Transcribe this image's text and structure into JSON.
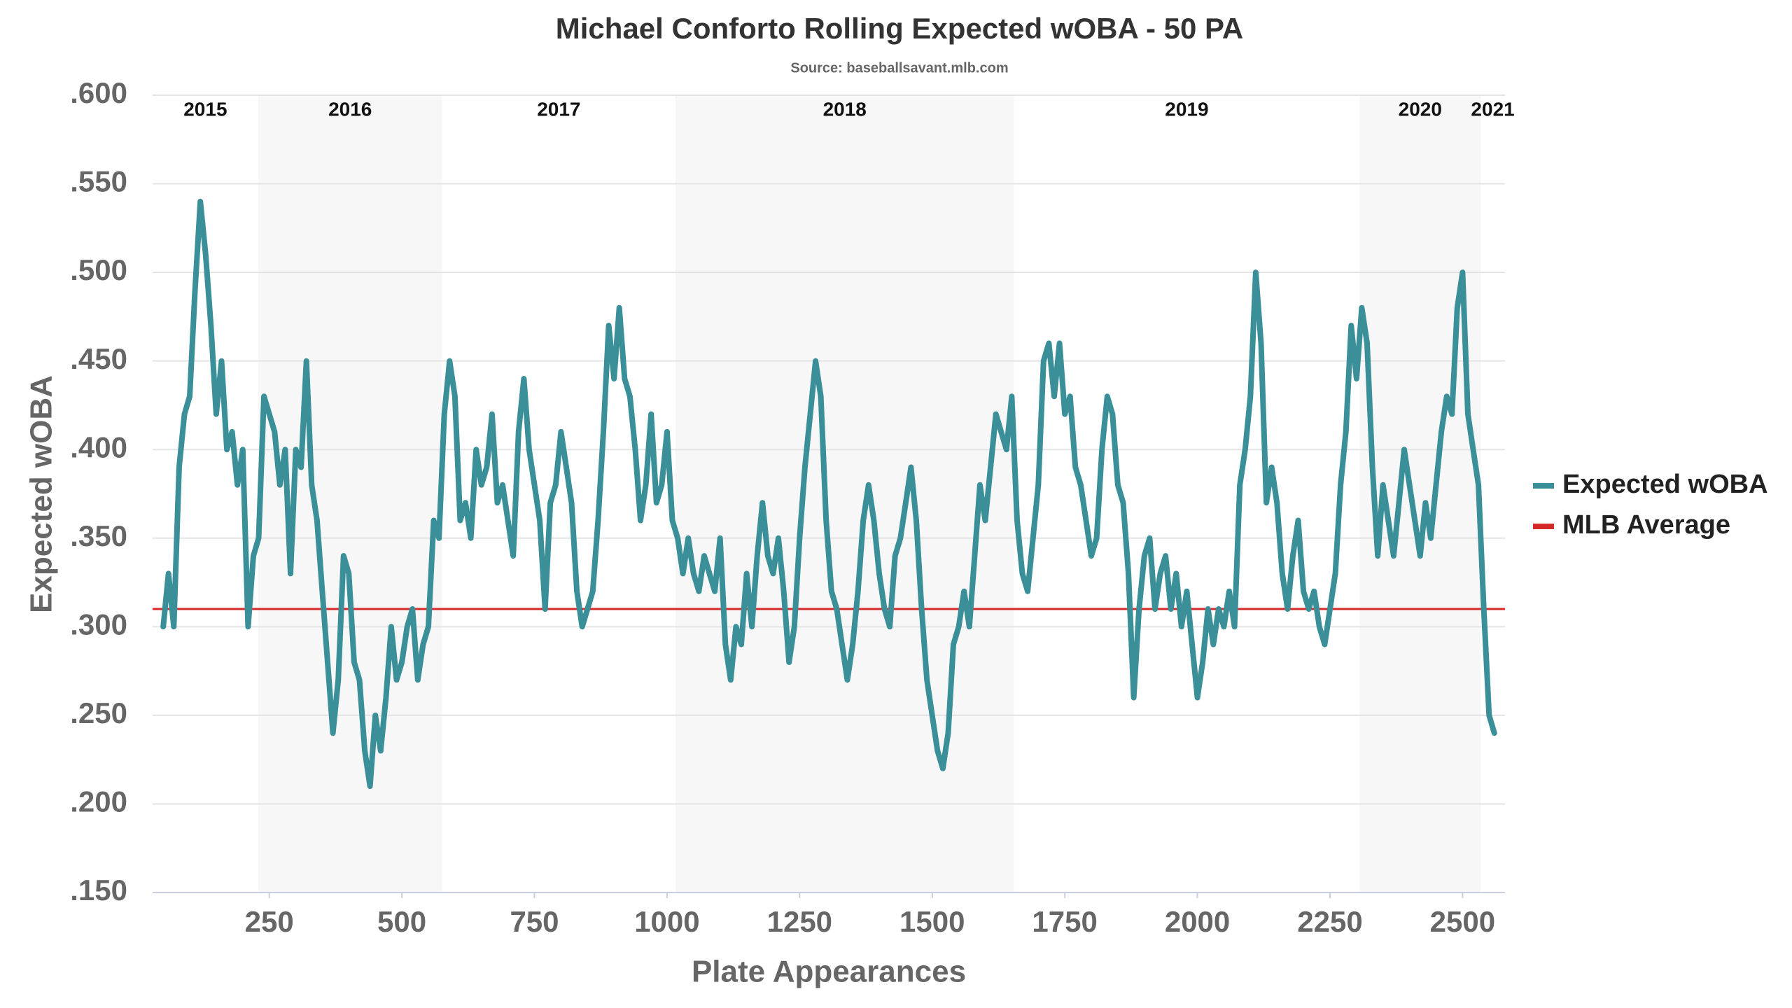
{
  "chart_data": {
    "type": "line",
    "title": "Michael Conforto Rolling Expected wOBA - 50 PA",
    "subtitle": "Source: baseballsavant.mlb.com",
    "x_label": "Plate Appearances",
    "y_label": "Expected wOBA",
    "xlim": [
      30,
      2580
    ],
    "ylim": [
      0.15,
      0.6
    ],
    "xticks": [
      250,
      500,
      750,
      1000,
      1250,
      1500,
      1750,
      2000,
      2250,
      2500
    ],
    "yticks": [
      {
        "value": 0.15,
        "label": ".150"
      },
      {
        "value": 0.2,
        "label": ".200"
      },
      {
        "value": 0.25,
        "label": ".250"
      },
      {
        "value": 0.3,
        "label": ".300"
      },
      {
        "value": 0.35,
        "label": ".350"
      },
      {
        "value": 0.4,
        "label": ".400"
      },
      {
        "value": 0.45,
        "label": ".450"
      },
      {
        "value": 0.5,
        "label": ".500"
      },
      {
        "value": 0.55,
        "label": ".550"
      },
      {
        "value": 0.6,
        "label": ".600"
      }
    ],
    "grid": true,
    "legend": "right",
    "seasons": [
      {
        "label": "2015",
        "start": 30,
        "end": 229,
        "shaded": false
      },
      {
        "label": "2016",
        "start": 229,
        "end": 576,
        "shaded": true
      },
      {
        "label": "2017",
        "start": 576,
        "end": 1016,
        "shaded": false
      },
      {
        "label": "2018",
        "start": 1016,
        "end": 1654,
        "shaded": true
      },
      {
        "label": "2019",
        "start": 1654,
        "end": 2306,
        "shaded": false
      },
      {
        "label": "2020",
        "start": 2306,
        "end": 2534,
        "shaded": true
      },
      {
        "label": "2021",
        "start": 2534,
        "end": 2580,
        "shaded": false
      }
    ],
    "reference_line": {
      "name": "MLB Average",
      "value": 0.31,
      "color": "#d42a2a"
    },
    "x": [
      50,
      60,
      70,
      80,
      90,
      100,
      110,
      120,
      130,
      140,
      150,
      160,
      170,
      180,
      190,
      200,
      210,
      220,
      230,
      240,
      250,
      260,
      270,
      280,
      290,
      300,
      310,
      320,
      330,
      340,
      350,
      360,
      370,
      380,
      390,
      400,
      410,
      420,
      430,
      440,
      450,
      460,
      470,
      480,
      490,
      500,
      510,
      520,
      530,
      540,
      550,
      560,
      570,
      580,
      590,
      600,
      610,
      620,
      630,
      640,
      650,
      660,
      670,
      680,
      690,
      700,
      710,
      720,
      730,
      740,
      750,
      760,
      770,
      780,
      790,
      800,
      810,
      820,
      830,
      840,
      850,
      860,
      870,
      880,
      890,
      900,
      910,
      920,
      930,
      940,
      950,
      960,
      970,
      980,
      990,
      1000,
      1010,
      1020,
      1030,
      1040,
      1050,
      1060,
      1070,
      1080,
      1090,
      1100,
      1110,
      1120,
      1130,
      1140,
      1150,
      1160,
      1170,
      1180,
      1190,
      1200,
      1210,
      1220,
      1230,
      1240,
      1250,
      1260,
      1270,
      1280,
      1290,
      1300,
      1310,
      1320,
      1330,
      1340,
      1350,
      1360,
      1370,
      1380,
      1390,
      1400,
      1410,
      1420,
      1430,
      1440,
      1450,
      1460,
      1470,
      1480,
      1490,
      1500,
      1510,
      1520,
      1530,
      1540,
      1550,
      1560,
      1570,
      1580,
      1590,
      1600,
      1610,
      1620,
      1630,
      1640,
      1650,
      1660,
      1670,
      1680,
      1690,
      1700,
      1710,
      1720,
      1730,
      1740,
      1750,
      1760,
      1770,
      1780,
      1790,
      1800,
      1810,
      1820,
      1830,
      1840,
      1850,
      1860,
      1870,
      1880,
      1890,
      1900,
      1910,
      1920,
      1930,
      1940,
      1950,
      1960,
      1970,
      1980,
      1990,
      2000,
      2010,
      2020,
      2030,
      2040,
      2050,
      2060,
      2070,
      2080,
      2090,
      2100,
      2110,
      2120,
      2130,
      2140,
      2150,
      2160,
      2170,
      2180,
      2190,
      2200,
      2210,
      2220,
      2230,
      2240,
      2250,
      2260,
      2270,
      2280,
      2290,
      2300,
      2310,
      2320,
      2330,
      2340,
      2350,
      2360,
      2370,
      2380,
      2390,
      2400,
      2410,
      2420,
      2430,
      2440,
      2450,
      2460,
      2470,
      2480,
      2490,
      2500,
      2510,
      2520,
      2530,
      2540,
      2550,
      2560
    ],
    "series": [
      {
        "name": "Expected wOBA",
        "color": "#3a8f99",
        "values": [
          0.3,
          0.33,
          0.3,
          0.39,
          0.42,
          0.43,
          0.49,
          0.54,
          0.51,
          0.47,
          0.42,
          0.45,
          0.4,
          0.41,
          0.38,
          0.4,
          0.3,
          0.34,
          0.35,
          0.43,
          0.42,
          0.41,
          0.38,
          0.4,
          0.33,
          0.4,
          0.39,
          0.45,
          0.38,
          0.36,
          0.32,
          0.28,
          0.24,
          0.27,
          0.34,
          0.33,
          0.28,
          0.27,
          0.23,
          0.21,
          0.25,
          0.23,
          0.26,
          0.3,
          0.27,
          0.28,
          0.3,
          0.31,
          0.27,
          0.29,
          0.3,
          0.36,
          0.35,
          0.42,
          0.45,
          0.43,
          0.36,
          0.37,
          0.35,
          0.4,
          0.38,
          0.39,
          0.42,
          0.37,
          0.38,
          0.36,
          0.34,
          0.41,
          0.44,
          0.4,
          0.38,
          0.36,
          0.31,
          0.37,
          0.38,
          0.41,
          0.39,
          0.37,
          0.32,
          0.3,
          0.31,
          0.32,
          0.36,
          0.41,
          0.47,
          0.44,
          0.48,
          0.44,
          0.43,
          0.4,
          0.36,
          0.38,
          0.42,
          0.37,
          0.38,
          0.41,
          0.36,
          0.35,
          0.33,
          0.35,
          0.33,
          0.32,
          0.34,
          0.33,
          0.32,
          0.35,
          0.29,
          0.27,
          0.3,
          0.29,
          0.33,
          0.3,
          0.34,
          0.37,
          0.34,
          0.33,
          0.35,
          0.32,
          0.28,
          0.3,
          0.35,
          0.39,
          0.42,
          0.45,
          0.43,
          0.36,
          0.32,
          0.31,
          0.29,
          0.27,
          0.29,
          0.32,
          0.36,
          0.38,
          0.36,
          0.33,
          0.31,
          0.3,
          0.34,
          0.35,
          0.37,
          0.39,
          0.36,
          0.31,
          0.27,
          0.25,
          0.23,
          0.22,
          0.24,
          0.29,
          0.3,
          0.32,
          0.3,
          0.34,
          0.38,
          0.36,
          0.39,
          0.42,
          0.41,
          0.4,
          0.43,
          0.36,
          0.33,
          0.32,
          0.35,
          0.38,
          0.45,
          0.46,
          0.43,
          0.46,
          0.42,
          0.43,
          0.39,
          0.38,
          0.36,
          0.34,
          0.35,
          0.4,
          0.43,
          0.42,
          0.38,
          0.37,
          0.33,
          0.26,
          0.31,
          0.34,
          0.35,
          0.31,
          0.33,
          0.34,
          0.31,
          0.33,
          0.3,
          0.32,
          0.29,
          0.26,
          0.28,
          0.31,
          0.29,
          0.31,
          0.3,
          0.32,
          0.3,
          0.38,
          0.4,
          0.43,
          0.5,
          0.46,
          0.37,
          0.39,
          0.37,
          0.33,
          0.31,
          0.34,
          0.36,
          0.32,
          0.31,
          0.32,
          0.3,
          0.29,
          0.31,
          0.33,
          0.38,
          0.41,
          0.47,
          0.44,
          0.48,
          0.46,
          0.39,
          0.34,
          0.38,
          0.36,
          0.34,
          0.37,
          0.4,
          0.38,
          0.36,
          0.34,
          0.37,
          0.35,
          0.38,
          0.41,
          0.43,
          0.42,
          0.48,
          0.5,
          0.42,
          0.4,
          0.38,
          0.31,
          0.25,
          0.24
        ]
      }
    ]
  }
}
